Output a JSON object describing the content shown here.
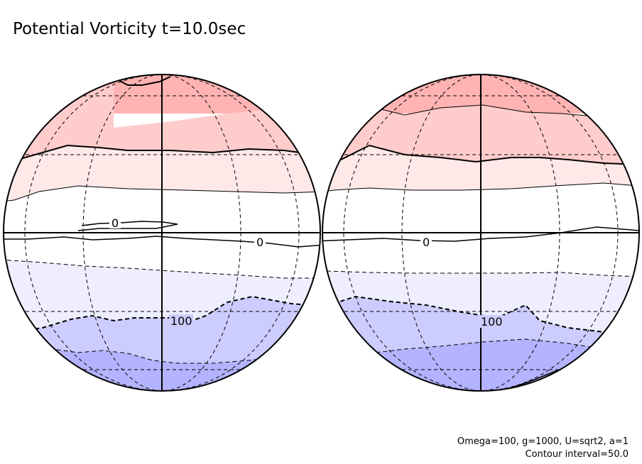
{
  "chart_data": {
    "type": "contour",
    "title": "Potential Vorticity t=10.0sec",
    "projection": "orthographic",
    "hemispheres": [
      "left",
      "right"
    ],
    "contour_interval": 50.0,
    "contour_labels": [
      "0",
      "0",
      "0",
      "100",
      "100"
    ],
    "parameters": {
      "line1": "Omega=100, g=1000, U=sqrt2, a=1",
      "line2": "Contour interval=50.0"
    },
    "fill_bands": [
      {
        "level": "highest positive",
        "color": "#ffb3b3"
      },
      {
        "level": "high positive",
        "color": "#ffcccc"
      },
      {
        "level": "positive",
        "color": "#ffe8e8"
      },
      {
        "level": "near zero",
        "color": "#ffffff"
      },
      {
        "level": "negative",
        "color": "#eeeeff"
      },
      {
        "level": "low negative",
        "color": "#ccccff"
      },
      {
        "level": "lowest negative",
        "color": "#b3b3ff"
      }
    ],
    "line_color": "#000000"
  }
}
